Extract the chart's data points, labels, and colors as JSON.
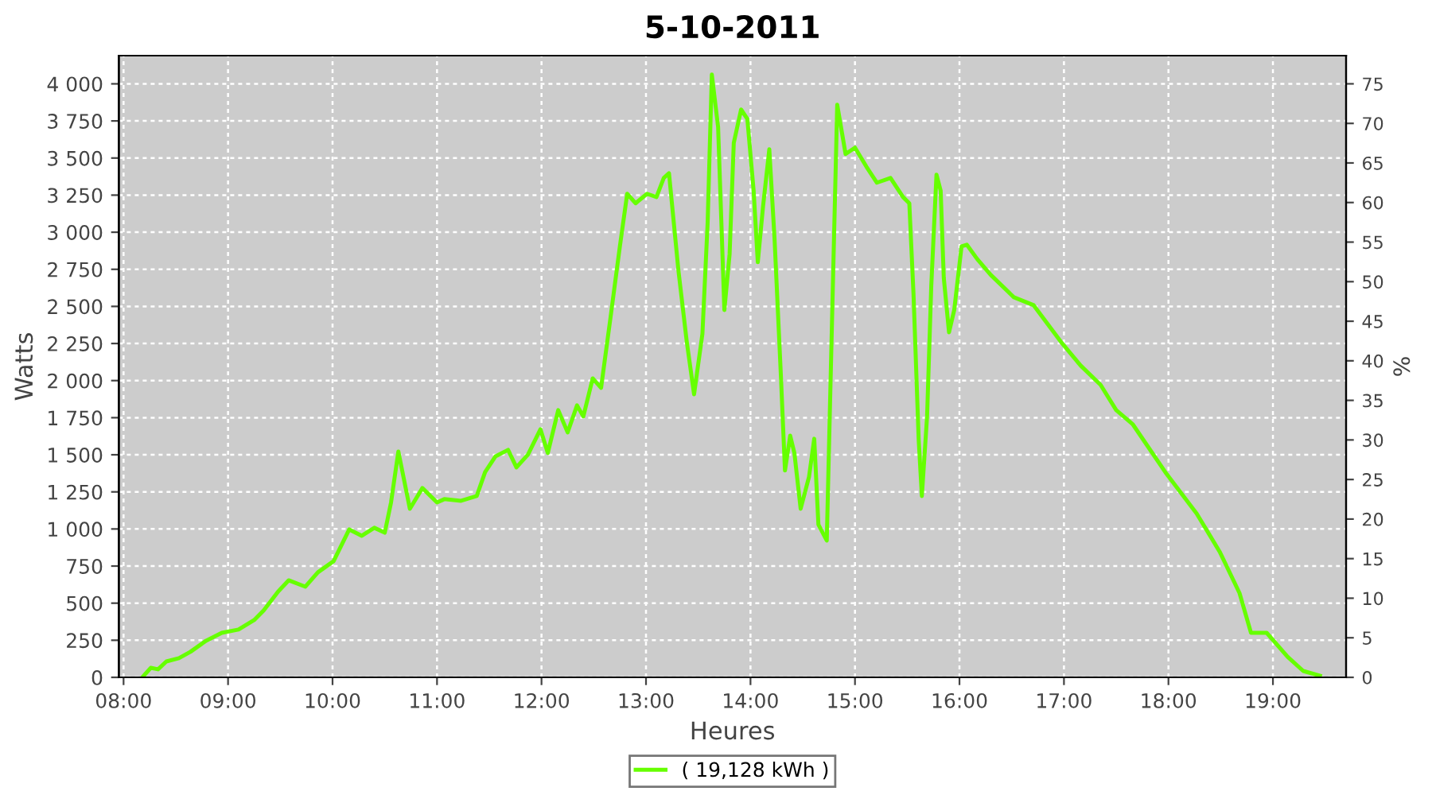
{
  "chart_data": {
    "type": "line",
    "title": "5-10-2011",
    "xlabel": "Heures",
    "ylabel": "Watts",
    "y2label": "%",
    "xlim": [
      7.955,
      19.7
    ],
    "xticks": [
      {
        "value": 8,
        "label": "08:00"
      },
      {
        "value": 9,
        "label": "09:00"
      },
      {
        "value": 10,
        "label": "10:00"
      },
      {
        "value": 11,
        "label": "11:00"
      },
      {
        "value": 12,
        "label": "12:00"
      },
      {
        "value": 13,
        "label": "13:00"
      },
      {
        "value": 14,
        "label": "14:00"
      },
      {
        "value": 15,
        "label": "15:00"
      },
      {
        "value": 16,
        "label": "16:00"
      },
      {
        "value": 17,
        "label": "17:00"
      },
      {
        "value": 18,
        "label": "18:00"
      },
      {
        "value": 19,
        "label": "19:00"
      }
    ],
    "ylim": [
      0,
      4190
    ],
    "yticks": [
      0,
      250,
      500,
      750,
      {
        "value": 1000,
        "label": "1 000"
      },
      {
        "value": 1250,
        "label": "1 250"
      },
      {
        "value": 1500,
        "label": "1 500"
      },
      {
        "value": 1750,
        "label": "1 750"
      },
      {
        "value": 2000,
        "label": "2 000"
      },
      {
        "value": 2250,
        "label": "2 250"
      },
      {
        "value": 2500,
        "label": "2 500"
      },
      {
        "value": 2750,
        "label": "2 750"
      },
      {
        "value": 3000,
        "label": "3 000"
      },
      {
        "value": 3250,
        "label": "3 250"
      },
      {
        "value": 3500,
        "label": "3 500"
      },
      {
        "value": 3750,
        "label": "3 750"
      },
      {
        "value": 4000,
        "label": "4 000"
      }
    ],
    "y2lim": [
      0,
      78.56
    ],
    "y2ticks": [
      0,
      5,
      10,
      15,
      20,
      25,
      30,
      35,
      40,
      45,
      50,
      55,
      60,
      65,
      70,
      75
    ],
    "grid": true,
    "legend": "bottom",
    "marker": "none",
    "line_style": "solid",
    "series": [
      {
        "name": "( 19,128 kWh )",
        "color": "#66ff00",
        "x": [
          8.18,
          8.26,
          8.33,
          8.41,
          8.53,
          8.64,
          8.79,
          8.94,
          9.1,
          9.25,
          9.34,
          9.48,
          9.58,
          9.74,
          9.86,
          10.01,
          10.16,
          10.28,
          10.4,
          10.5,
          10.56,
          10.63,
          10.74,
          10.86,
          11.0,
          11.07,
          11.23,
          11.38,
          11.46,
          11.56,
          11.68,
          11.76,
          11.87,
          11.99,
          12.06,
          12.16,
          12.25,
          12.34,
          12.4,
          12.49,
          12.57,
          12.66,
          12.75,
          12.82,
          12.9,
          13.01,
          13.1,
          13.17,
          13.22,
          13.31,
          13.39,
          13.46,
          13.54,
          13.59,
          13.63,
          13.69,
          13.75,
          13.8,
          13.84,
          13.91,
          13.97,
          14.03,
          14.07,
          14.12,
          14.18,
          14.23,
          14.29,
          14.33,
          14.38,
          14.42,
          14.48,
          14.56,
          14.61,
          14.65,
          14.73,
          14.77,
          14.83,
          14.91,
          15.0,
          15.11,
          15.21,
          15.34,
          15.46,
          15.52,
          15.56,
          15.61,
          15.64,
          15.69,
          15.73,
          15.78,
          15.82,
          15.85,
          15.9,
          15.95,
          16.02,
          16.07,
          16.17,
          16.3,
          16.52,
          16.71,
          16.97,
          17.16,
          17.35,
          17.5,
          17.66,
          17.97,
          18.27,
          18.49,
          18.68,
          18.79,
          18.94,
          19.14,
          19.29,
          19.45
        ],
        "values": [
          0,
          64,
          54,
          107,
          129,
          172,
          247,
          300,
          322,
          386,
          450,
          579,
          654,
          611,
          708,
          783,
          997,
          954,
          1008,
          975,
          1179,
          1522,
          1136,
          1276,
          1179,
          1201,
          1190,
          1222,
          1383,
          1490,
          1533,
          1415,
          1501,
          1672,
          1512,
          1801,
          1651,
          1833,
          1758,
          2015,
          1951,
          2423,
          2905,
          3259,
          3195,
          3259,
          3237,
          3366,
          3398,
          2744,
          2262,
          1908,
          2316,
          3066,
          4063,
          3709,
          2476,
          2852,
          3602,
          3827,
          3763,
          3280,
          2798,
          3173,
          3559,
          2959,
          2048,
          1394,
          1629,
          1512,
          1136,
          1351,
          1608,
          1029,
          922,
          2101,
          3859,
          3527,
          3570,
          3441,
          3334,
          3366,
          3237,
          3195,
          2584,
          1597,
          1222,
          1758,
          2637,
          3388,
          3280,
          2691,
          2326,
          2476,
          2905,
          2916,
          2819,
          2712,
          2562,
          2508,
          2262,
          2101,
          1972,
          1801,
          1704,
          1383,
          1104,
          847,
          568,
          300,
          300,
          139,
          43,
          11
        ]
      }
    ]
  }
}
